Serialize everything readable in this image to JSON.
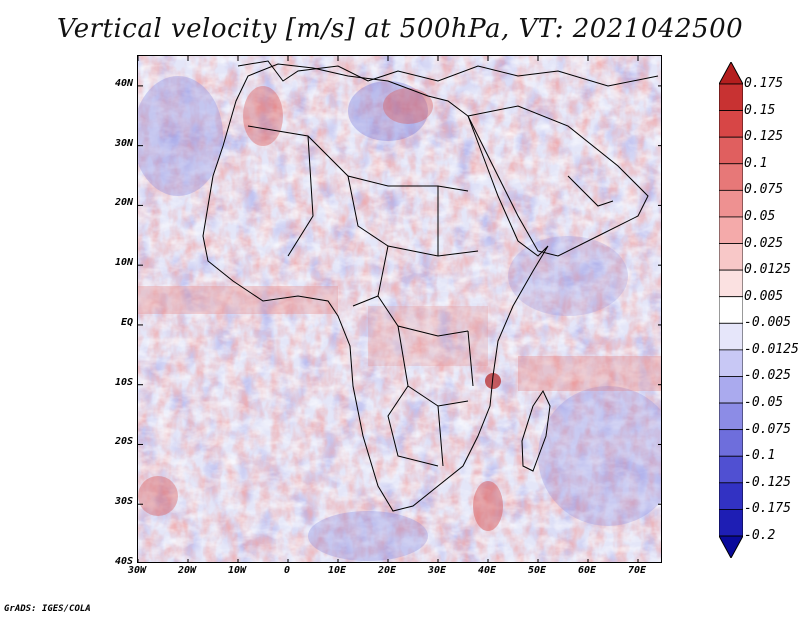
{
  "title": "Vertical velocity [m/s] at 500hPa, VT: 2021042500",
  "credit": "GrADS: IGES/COLA",
  "map": {
    "variable": "Vertical velocity",
    "units": "m/s",
    "level": "500hPa",
    "valid_time": "2021042500",
    "region": "Africa",
    "lon_range": [
      -30,
      75
    ],
    "lat_range": [
      -40,
      45
    ],
    "lat_ticks": [
      {
        "value": 40,
        "label": "40N"
      },
      {
        "value": 30,
        "label": "30N"
      },
      {
        "value": 20,
        "label": "20N"
      },
      {
        "value": 10,
        "label": "10N"
      },
      {
        "value": 0,
        "label": "EQ"
      },
      {
        "value": -10,
        "label": "10S"
      },
      {
        "value": -20,
        "label": "20S"
      },
      {
        "value": -30,
        "label": "30S"
      },
      {
        "value": -40,
        "label": "40S"
      }
    ],
    "lon_ticks": [
      {
        "value": -30,
        "label": "30W"
      },
      {
        "value": -20,
        "label": "20W"
      },
      {
        "value": -10,
        "label": "10W"
      },
      {
        "value": 0,
        "label": "0"
      },
      {
        "value": 10,
        "label": "10E"
      },
      {
        "value": 20,
        "label": "20E"
      },
      {
        "value": 30,
        "label": "30E"
      },
      {
        "value": 40,
        "label": "40E"
      },
      {
        "value": 50,
        "label": "50E"
      },
      {
        "value": 60,
        "label": "60E"
      },
      {
        "value": 70,
        "label": "70E"
      }
    ]
  },
  "colorbar": {
    "levels": [
      "0.175",
      "0.15",
      "0.125",
      "0.1",
      "0.075",
      "0.05",
      "0.025",
      "0.0125",
      "0.005",
      "-0.005",
      "-0.0125",
      "-0.025",
      "-0.05",
      "-0.075",
      "-0.1",
      "-0.125",
      "-0.175",
      "-0.2"
    ],
    "colors": [
      "#b41e1e",
      "#c83232",
      "#d74646",
      "#e05f5f",
      "#e77878",
      "#ee9191",
      "#f4aaaa",
      "#f8c8c8",
      "#fbe1e1",
      "#ffffff",
      "#e6e6fa",
      "#c8c8f5",
      "#aaaaee",
      "#8c8ce6",
      "#6e6edc",
      "#5050d2",
      "#3232c3",
      "#1e1eb4",
      "#0a0a9b"
    ]
  },
  "icons": {
    "colorbar_top": "up-triangle-icon",
    "colorbar_bottom": "down-triangle-icon"
  }
}
